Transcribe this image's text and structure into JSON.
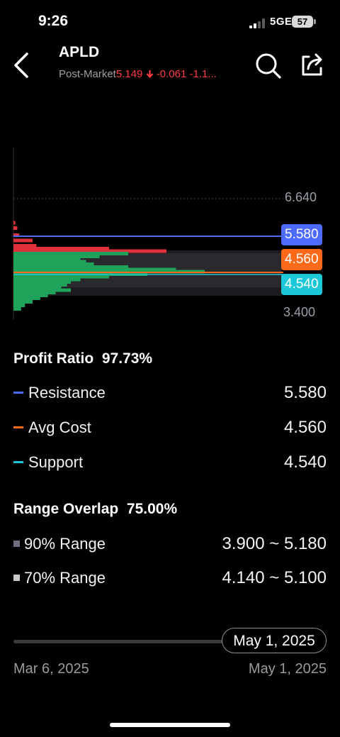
{
  "status_bar": {
    "time": "9:26",
    "network": "5GE",
    "battery": "57"
  },
  "header": {
    "symbol": "APLD",
    "session_label": "Post-Market",
    "price": "5.149",
    "change": "-0.061",
    "change_pct": "-1.1...",
    "back_icon": "chevron-left-icon",
    "search_icon": "search-icon",
    "share_icon": "share-icon"
  },
  "chart": {
    "axis_high": "6.640",
    "axis_low": "3.400",
    "resistance_tag": "5.580",
    "avg_cost_tag": "4.560",
    "support_tag": "4.540"
  },
  "chart_data": {
    "type": "bar",
    "orientation": "horizontal",
    "price_range": [
      3.4,
      6.64
    ],
    "levels": {
      "resistance": 5.58,
      "avg_cost": 4.56,
      "support": 4.54
    },
    "bands": {
      "range_90": [
        3.9,
        5.18
      ],
      "range_70": [
        4.14,
        5.1
      ]
    },
    "profit_color": "#1fa35a",
    "loss_color": "#e0303a",
    "distribution": {
      "prices": [
        5.95,
        5.8,
        5.6,
        5.45,
        5.3,
        5.22,
        5.15,
        5.08,
        5.0,
        4.92,
        4.85,
        4.78,
        4.7,
        4.63,
        4.57,
        4.5,
        4.43,
        4.35,
        4.28,
        4.2,
        4.12,
        4.05,
        3.98,
        3.9,
        3.82,
        3.72,
        3.62,
        3.52
      ],
      "weights": [
        0.01,
        0.02,
        0.03,
        0.1,
        0.12,
        0.5,
        0.8,
        0.6,
        0.45,
        0.35,
        0.38,
        0.42,
        0.6,
        0.85,
        1.0,
        0.7,
        0.5,
        0.35,
        0.3,
        0.28,
        0.25,
        0.3,
        0.22,
        0.18,
        0.14,
        0.1,
        0.06,
        0.04
      ]
    }
  },
  "profit": {
    "label": "Profit Ratio",
    "value": "97.73%"
  },
  "levels": [
    {
      "label": "Resistance",
      "value": "5.580",
      "color": "#4d6bff"
    },
    {
      "label": "Avg Cost",
      "value": "4.560",
      "color": "#ff6a1a"
    },
    {
      "label": "Support",
      "value": "4.540",
      "color": "#1cc8d8"
    }
  ],
  "overlap": {
    "label": "Range Overlap",
    "value": "75.00%"
  },
  "ranges": [
    {
      "label": "90% Range",
      "value": "3.900 ~ 5.180",
      "color": "#6e7080"
    },
    {
      "label": "70% Range",
      "value": "4.140 ~ 5.100",
      "color": "#c8c8cc"
    }
  ],
  "slider": {
    "selected": "May 1, 2025",
    "start": "Mar 6, 2025",
    "end": "May 1, 2025"
  }
}
